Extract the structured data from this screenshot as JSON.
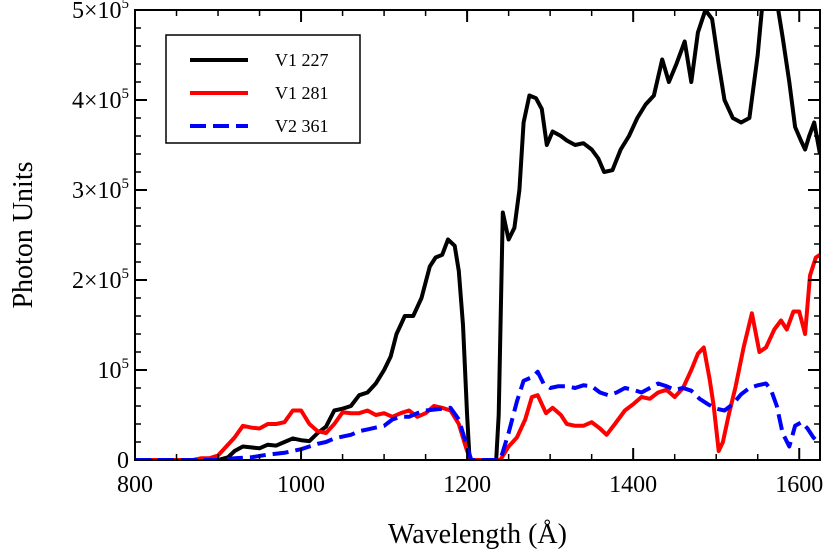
{
  "chart_data": {
    "type": "line",
    "xlabel": "Wavelength (Å)",
    "ylabel": "Photon Units",
    "xlim": [
      800,
      1625
    ],
    "ylim": [
      0,
      500000
    ],
    "x_ticks": [
      {
        "value": 800,
        "label": "800"
      },
      {
        "value": 1000,
        "label": "1000"
      },
      {
        "value": 1200,
        "label": "1200"
      },
      {
        "value": 1400,
        "label": "1400"
      },
      {
        "value": 1600,
        "label": "1600"
      }
    ],
    "y_ticks": [
      {
        "value": 0,
        "base": "0",
        "exp": ""
      },
      {
        "value": 100000,
        "base": "10",
        "exp": "5"
      },
      {
        "value": 200000,
        "base": "2×10",
        "exp": "5"
      },
      {
        "value": 300000,
        "base": "3×10",
        "exp": "5"
      },
      {
        "value": 400000,
        "base": "4×10",
        "exp": "5"
      },
      {
        "value": 500000,
        "base": "5×10",
        "exp": "5"
      }
    ],
    "grid": false,
    "legend_position": "top-left",
    "series": [
      {
        "name": "V1 227",
        "color": "#000000",
        "dash": "solid",
        "points": [
          [
            800,
            0
          ],
          [
            840,
            0
          ],
          [
            860,
            0
          ],
          [
            880,
            0
          ],
          [
            900,
            0
          ],
          [
            912,
            3000
          ],
          [
            920,
            10000
          ],
          [
            930,
            15000
          ],
          [
            940,
            14000
          ],
          [
            950,
            13000
          ],
          [
            960,
            17000
          ],
          [
            970,
            16000
          ],
          [
            980,
            20000
          ],
          [
            990,
            24000
          ],
          [
            1000,
            22000
          ],
          [
            1010,
            21000
          ],
          [
            1020,
            30000
          ],
          [
            1030,
            37000
          ],
          [
            1040,
            55000
          ],
          [
            1050,
            57000
          ],
          [
            1060,
            60000
          ],
          [
            1070,
            72000
          ],
          [
            1080,
            75000
          ],
          [
            1090,
            85000
          ],
          [
            1100,
            100000
          ],
          [
            1108,
            115000
          ],
          [
            1115,
            140000
          ],
          [
            1120,
            150000
          ],
          [
            1125,
            160000
          ],
          [
            1135,
            160000
          ],
          [
            1145,
            180000
          ],
          [
            1155,
            215000
          ],
          [
            1162,
            225000
          ],
          [
            1170,
            228000
          ],
          [
            1177,
            245000
          ],
          [
            1185,
            238000
          ],
          [
            1190,
            210000
          ],
          [
            1195,
            150000
          ],
          [
            1200,
            50000
          ],
          [
            1203,
            0
          ],
          [
            1208,
            0
          ],
          [
            1235,
            0
          ],
          [
            1238,
            50000
          ],
          [
            1243,
            275000
          ],
          [
            1250,
            245000
          ],
          [
            1257,
            258000
          ],
          [
            1263,
            300000
          ],
          [
            1268,
            375000
          ],
          [
            1275,
            405000
          ],
          [
            1283,
            402000
          ],
          [
            1290,
            390000
          ],
          [
            1296,
            350000
          ],
          [
            1303,
            365000
          ],
          [
            1313,
            360000
          ],
          [
            1320,
            355000
          ],
          [
            1330,
            350000
          ],
          [
            1340,
            352000
          ],
          [
            1350,
            345000
          ],
          [
            1358,
            335000
          ],
          [
            1365,
            320000
          ],
          [
            1375,
            322000
          ],
          [
            1385,
            345000
          ],
          [
            1395,
            360000
          ],
          [
            1405,
            380000
          ],
          [
            1415,
            395000
          ],
          [
            1425,
            405000
          ],
          [
            1435,
            445000
          ],
          [
            1443,
            420000
          ],
          [
            1452,
            440000
          ],
          [
            1462,
            465000
          ],
          [
            1470,
            420000
          ],
          [
            1478,
            475000
          ],
          [
            1487,
            500000
          ],
          [
            1495,
            490000
          ],
          [
            1503,
            440000
          ],
          [
            1510,
            400000
          ],
          [
            1520,
            380000
          ],
          [
            1530,
            375000
          ],
          [
            1540,
            380000
          ],
          [
            1550,
            450000
          ],
          [
            1557,
            520000
          ],
          [
            1565,
            505000
          ],
          [
            1573,
            510000
          ],
          [
            1580,
            470000
          ],
          [
            1588,
            420000
          ],
          [
            1595,
            370000
          ],
          [
            1602,
            355000
          ],
          [
            1607,
            345000
          ],
          [
            1612,
            360000
          ],
          [
            1618,
            375000
          ],
          [
            1625,
            340000
          ]
        ]
      },
      {
        "name": "V1 281",
        "color": "#ff0000",
        "dash": "solid",
        "points": [
          [
            800,
            0
          ],
          [
            840,
            0
          ],
          [
            870,
            0
          ],
          [
            880,
            2000
          ],
          [
            890,
            2000
          ],
          [
            900,
            5000
          ],
          [
            910,
            15000
          ],
          [
            920,
            25000
          ],
          [
            930,
            38000
          ],
          [
            940,
            36000
          ],
          [
            950,
            35000
          ],
          [
            960,
            40000
          ],
          [
            970,
            40000
          ],
          [
            980,
            42000
          ],
          [
            990,
            55000
          ],
          [
            1000,
            55000
          ],
          [
            1010,
            40000
          ],
          [
            1020,
            32000
          ],
          [
            1030,
            30000
          ],
          [
            1040,
            40000
          ],
          [
            1050,
            53000
          ],
          [
            1060,
            52000
          ],
          [
            1070,
            52000
          ],
          [
            1080,
            55000
          ],
          [
            1090,
            50000
          ],
          [
            1100,
            52000
          ],
          [
            1110,
            48000
          ],
          [
            1120,
            52000
          ],
          [
            1130,
            55000
          ],
          [
            1140,
            48000
          ],
          [
            1150,
            52000
          ],
          [
            1160,
            60000
          ],
          [
            1170,
            58000
          ],
          [
            1180,
            55000
          ],
          [
            1190,
            40000
          ],
          [
            1200,
            10000
          ],
          [
            1205,
            0
          ],
          [
            1215,
            0
          ],
          [
            1240,
            0
          ],
          [
            1250,
            15000
          ],
          [
            1260,
            25000
          ],
          [
            1270,
            45000
          ],
          [
            1278,
            70000
          ],
          [
            1285,
            72000
          ],
          [
            1295,
            52000
          ],
          [
            1303,
            58000
          ],
          [
            1313,
            50000
          ],
          [
            1320,
            40000
          ],
          [
            1330,
            38000
          ],
          [
            1340,
            38000
          ],
          [
            1350,
            42000
          ],
          [
            1360,
            35000
          ],
          [
            1368,
            28000
          ],
          [
            1378,
            40000
          ],
          [
            1390,
            55000
          ],
          [
            1400,
            62000
          ],
          [
            1410,
            70000
          ],
          [
            1420,
            68000
          ],
          [
            1430,
            75000
          ],
          [
            1440,
            78000
          ],
          [
            1450,
            70000
          ],
          [
            1460,
            80000
          ],
          [
            1470,
            100000
          ],
          [
            1478,
            118000
          ],
          [
            1485,
            125000
          ],
          [
            1492,
            90000
          ],
          [
            1497,
            60000
          ],
          [
            1503,
            10000
          ],
          [
            1508,
            20000
          ],
          [
            1515,
            50000
          ],
          [
            1523,
            80000
          ],
          [
            1533,
            125000
          ],
          [
            1543,
            163000
          ],
          [
            1552,
            120000
          ],
          [
            1560,
            125000
          ],
          [
            1570,
            145000
          ],
          [
            1578,
            155000
          ],
          [
            1585,
            145000
          ],
          [
            1593,
            165000
          ],
          [
            1600,
            165000
          ],
          [
            1607,
            140000
          ],
          [
            1613,
            205000
          ],
          [
            1620,
            225000
          ],
          [
            1625,
            228000
          ]
        ]
      },
      {
        "name": "V2 361",
        "color": "#0000ff",
        "dash": "dashed",
        "points": [
          [
            800,
            0
          ],
          [
            880,
            0
          ],
          [
            900,
            0
          ],
          [
            920,
            2000
          ],
          [
            940,
            3000
          ],
          [
            960,
            6000
          ],
          [
            980,
            8000
          ],
          [
            1000,
            12000
          ],
          [
            1010,
            15000
          ],
          [
            1020,
            18000
          ],
          [
            1030,
            20000
          ],
          [
            1040,
            24000
          ],
          [
            1050,
            26000
          ],
          [
            1060,
            28000
          ],
          [
            1070,
            32000
          ],
          [
            1080,
            34000
          ],
          [
            1090,
            36000
          ],
          [
            1100,
            38000
          ],
          [
            1110,
            45000
          ],
          [
            1120,
            48000
          ],
          [
            1130,
            48000
          ],
          [
            1140,
            52000
          ],
          [
            1150,
            55000
          ],
          [
            1160,
            56000
          ],
          [
            1170,
            57000
          ],
          [
            1180,
            58000
          ],
          [
            1190,
            45000
          ],
          [
            1200,
            15000
          ],
          [
            1205,
            0
          ],
          [
            1225,
            0
          ],
          [
            1240,
            0
          ],
          [
            1250,
            30000
          ],
          [
            1260,
            65000
          ],
          [
            1268,
            88000
          ],
          [
            1278,
            92000
          ],
          [
            1285,
            98000
          ],
          [
            1292,
            85000
          ],
          [
            1300,
            80000
          ],
          [
            1310,
            82000
          ],
          [
            1320,
            82000
          ],
          [
            1330,
            80000
          ],
          [
            1340,
            83000
          ],
          [
            1350,
            82000
          ],
          [
            1360,
            75000
          ],
          [
            1370,
            72000
          ],
          [
            1380,
            75000
          ],
          [
            1390,
            80000
          ],
          [
            1400,
            78000
          ],
          [
            1410,
            75000
          ],
          [
            1420,
            80000
          ],
          [
            1430,
            85000
          ],
          [
            1440,
            82000
          ],
          [
            1450,
            78000
          ],
          [
            1460,
            80000
          ],
          [
            1470,
            77000
          ],
          [
            1480,
            68000
          ],
          [
            1490,
            62000
          ],
          [
            1500,
            57000
          ],
          [
            1510,
            55000
          ],
          [
            1520,
            62000
          ],
          [
            1530,
            73000
          ],
          [
            1540,
            80000
          ],
          [
            1550,
            83000
          ],
          [
            1560,
            85000
          ],
          [
            1566,
            78000
          ],
          [
            1573,
            60000
          ],
          [
            1580,
            30000
          ],
          [
            1588,
            15000
          ],
          [
            1595,
            38000
          ],
          [
            1603,
            42000
          ],
          [
            1610,
            35000
          ],
          [
            1617,
            25000
          ],
          [
            1625,
            18000
          ]
        ]
      }
    ]
  }
}
